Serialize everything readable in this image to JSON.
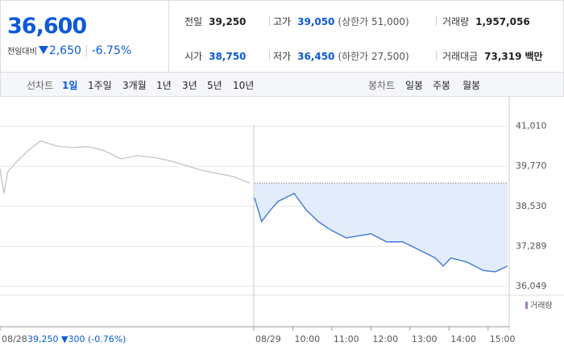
{
  "header": {
    "price": "36,600",
    "change_label": "전일대비",
    "change": "2,650",
    "change_pct": "-6.75%"
  },
  "stats": [
    {
      "label": "전일",
      "value": "39,250"
    },
    {
      "label": "고가",
      "value": "39,050",
      "note": "(상한가 51,000)"
    },
    {
      "label": "거래량",
      "value": "1,957,056"
    },
    {
      "label": "시가",
      "value": "38,750"
    },
    {
      "label": "저가",
      "value": "36,450",
      "note": "(하한가 27,500)"
    },
    {
      "label": "거래대금",
      "value": "73,319",
      "unit": "백만"
    }
  ],
  "tabs": {
    "line_label": "선차트",
    "line": [
      "1일",
      "1주일",
      "3개월",
      "1년",
      "3년",
      "5년",
      "10년"
    ],
    "candle_label": "봉차트",
    "candle": [
      "일봉",
      "주봉",
      "월봉"
    ]
  },
  "chart_data": {
    "type": "line",
    "xlim": [
      0,
      780
    ],
    "xticks": [
      {
        "value": 0,
        "label": "08/28"
      },
      {
        "value": 390,
        "label": "08/29"
      },
      {
        "value": 450,
        "label": "10:00"
      },
      {
        "value": 510,
        "label": "11:00"
      },
      {
        "value": 570,
        "label": "12:00"
      },
      {
        "value": 630,
        "label": "13:00"
      },
      {
        "value": 690,
        "label": "14:00"
      },
      {
        "value": 750,
        "label": "15:00"
      }
    ],
    "ylim": [
      35800,
      41800
    ],
    "yticks": [
      {
        "value": 41010,
        "label": "41,010"
      },
      {
        "value": 39770,
        "label": "39,770"
      },
      {
        "value": 38530,
        "label": "38,530"
      },
      {
        "value": 37289,
        "label": "37,289"
      },
      {
        "value": 36049,
        "label": "36,049"
      }
    ],
    "grid": true,
    "ref_value": 39250,
    "series": [
      {
        "color": "#c4c4c4",
        "x": [
          0,
          6,
          12,
          25,
          43,
          62,
          87,
          111,
          136,
          161,
          186,
          210,
          235,
          260,
          285,
          310,
          334,
          359,
          384
        ],
        "values": [
          39700,
          38930,
          39600,
          39900,
          40250,
          40560,
          40400,
          40350,
          40380,
          40250,
          40000,
          40100,
          40050,
          39950,
          39800,
          39650,
          39550,
          39450,
          39250
        ]
      },
      {
        "color": "#2f6fd6",
        "area_color": "#e3ecfa",
        "x": [
          391,
          402,
          415,
          427,
          452,
          470,
          489,
          508,
          532,
          570,
          594,
          619,
          644,
          669,
          681,
          693,
          718,
          743,
          761,
          780
        ],
        "values": [
          38800,
          38060,
          38400,
          38680,
          38930,
          38430,
          38060,
          37800,
          37550,
          37680,
          37430,
          37430,
          37180,
          36930,
          36680,
          36930,
          36800,
          36540,
          36500,
          36680
        ]
      }
    ],
    "volume_label": "거래량",
    "volume_color": "#9b7fc9",
    "annotation": "39,250 ▼300 (-0.76%)"
  }
}
